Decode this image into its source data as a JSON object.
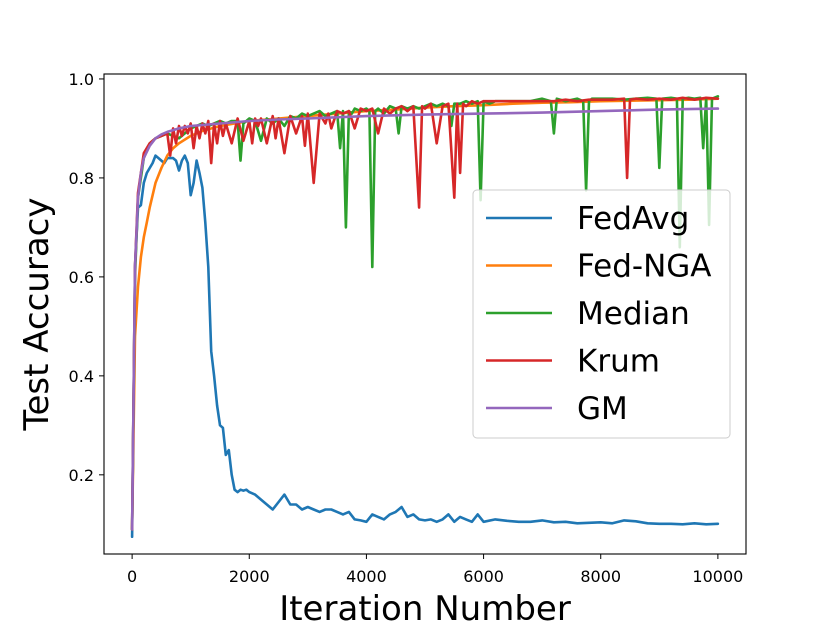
{
  "chart_data": {
    "type": "line",
    "title": "",
    "xlabel": "Iteration Number",
    "ylabel": "Test Accuracy",
    "xlim": [
      -480,
      10480
    ],
    "ylim": [
      0.04,
      1.01
    ],
    "xticks": [
      0,
      2000,
      4000,
      6000,
      8000,
      10000
    ],
    "xtick_labels": [
      "0",
      "2000",
      "4000",
      "6000",
      "8000",
      "10000"
    ],
    "yticks": [
      0.2,
      0.4,
      0.6,
      0.8,
      1.0
    ],
    "ytick_labels": [
      "0.2",
      "0.4",
      "0.6",
      "0.8",
      "1.0"
    ],
    "grid": false,
    "legend_position": "center-right",
    "series": [
      {
        "name": "FedAvg",
        "color": "#1f77b4",
        "x": [
          0,
          50,
          100,
          150,
          200,
          250,
          300,
          350,
          400,
          450,
          500,
          550,
          600,
          650,
          700,
          750,
          800,
          850,
          900,
          950,
          1000,
          1050,
          1100,
          1150,
          1200,
          1250,
          1300,
          1350,
          1400,
          1450,
          1500,
          1550,
          1600,
          1650,
          1700,
          1750,
          1800,
          1850,
          1900,
          1950,
          2000,
          2100,
          2200,
          2300,
          2400,
          2500,
          2600,
          2700,
          2800,
          2900,
          3000,
          3100,
          3200,
          3300,
          3400,
          3500,
          3600,
          3700,
          3800,
          3900,
          4000,
          4100,
          4200,
          4300,
          4400,
          4500,
          4600,
          4700,
          4800,
          4900,
          5000,
          5100,
          5200,
          5300,
          5400,
          5500,
          5600,
          5700,
          5800,
          5900,
          6000,
          6200,
          6400,
          6600,
          6800,
          7000,
          7200,
          7400,
          7600,
          7800,
          8000,
          8200,
          8400,
          8600,
          8800,
          9000,
          9200,
          9400,
          9600,
          9800,
          10000
        ],
        "y": [
          0.075,
          0.62,
          0.74,
          0.745,
          0.79,
          0.81,
          0.82,
          0.83,
          0.845,
          0.84,
          0.835,
          0.83,
          0.84,
          0.84,
          0.84,
          0.835,
          0.815,
          0.835,
          0.845,
          0.83,
          0.765,
          0.79,
          0.835,
          0.81,
          0.78,
          0.71,
          0.62,
          0.45,
          0.4,
          0.34,
          0.3,
          0.295,
          0.24,
          0.25,
          0.2,
          0.17,
          0.165,
          0.17,
          0.168,
          0.17,
          0.165,
          0.16,
          0.15,
          0.14,
          0.13,
          0.145,
          0.16,
          0.14,
          0.14,
          0.13,
          0.135,
          0.13,
          0.125,
          0.13,
          0.13,
          0.125,
          0.12,
          0.125,
          0.11,
          0.108,
          0.105,
          0.12,
          0.115,
          0.11,
          0.12,
          0.125,
          0.135,
          0.115,
          0.12,
          0.11,
          0.108,
          0.11,
          0.105,
          0.11,
          0.12,
          0.105,
          0.115,
          0.11,
          0.105,
          0.12,
          0.105,
          0.11,
          0.107,
          0.105,
          0.105,
          0.108,
          0.104,
          0.105,
          0.102,
          0.103,
          0.104,
          0.102,
          0.108,
          0.106,
          0.102,
          0.101,
          0.101,
          0.1,
          0.102,
          0.1,
          0.101
        ]
      },
      {
        "name": "Fed-NGA",
        "color": "#ff7f0e",
        "x": [
          0,
          50,
          100,
          150,
          200,
          250,
          300,
          400,
          500,
          600,
          700,
          800,
          1000,
          1200,
          1500,
          2000,
          2500,
          3000,
          3500,
          4000,
          4500,
          5000,
          5500,
          6000,
          6500,
          7000,
          7500,
          8000,
          8500,
          9000,
          9500,
          10000
        ],
        "y": [
          0.09,
          0.48,
          0.58,
          0.64,
          0.68,
          0.71,
          0.74,
          0.79,
          0.82,
          0.845,
          0.86,
          0.87,
          0.885,
          0.895,
          0.905,
          0.915,
          0.92,
          0.925,
          0.93,
          0.935,
          0.938,
          0.942,
          0.945,
          0.947,
          0.95,
          0.952,
          0.953,
          0.955,
          0.956,
          0.957,
          0.958,
          0.96
        ]
      },
      {
        "name": "Median",
        "color": "#2ca02c",
        "x": [
          0,
          50,
          100,
          200,
          300,
          400,
          500,
          600,
          700,
          800,
          900,
          1000,
          1100,
          1200,
          1300,
          1400,
          1500,
          1600,
          1700,
          1800,
          1850,
          1900,
          2000,
          2100,
          2200,
          2300,
          2400,
          2500,
          2600,
          2700,
          2800,
          2900,
          3000,
          3100,
          3200,
          3300,
          3400,
          3500,
          3550,
          3600,
          3650,
          3700,
          3750,
          3800,
          3900,
          4000,
          4050,
          4100,
          4150,
          4200,
          4300,
          4400,
          4500,
          4550,
          4600,
          4700,
          4800,
          4900,
          5000,
          5100,
          5200,
          5300,
          5400,
          5450,
          5500,
          5600,
          5700,
          5800,
          5900,
          5950,
          6000,
          6100,
          6200,
          6400,
          6600,
          6800,
          7000,
          7150,
          7200,
          7250,
          7400,
          7600,
          7700,
          7750,
          7800,
          7850,
          8000,
          8200,
          8400,
          8600,
          8800,
          8950,
          9000,
          9050,
          9200,
          9300,
          9350,
          9400,
          9500,
          9600,
          9700,
          9750,
          9800,
          9850,
          9900,
          10000
        ],
        "y": [
          0.09,
          0.6,
          0.76,
          0.84,
          0.87,
          0.88,
          0.885,
          0.89,
          0.885,
          0.88,
          0.89,
          0.9,
          0.905,
          0.91,
          0.905,
          0.91,
          0.915,
          0.91,
          0.915,
          0.915,
          0.835,
          0.91,
          0.92,
          0.915,
          0.875,
          0.92,
          0.91,
          0.92,
          0.905,
          0.925,
          0.92,
          0.93,
          0.925,
          0.93,
          0.935,
          0.925,
          0.93,
          0.935,
          0.86,
          0.935,
          0.7,
          0.935,
          0.93,
          0.94,
          0.935,
          0.94,
          0.935,
          0.62,
          0.935,
          0.94,
          0.93,
          0.945,
          0.94,
          0.89,
          0.945,
          0.94,
          0.945,
          0.94,
          0.945,
          0.95,
          0.945,
          0.95,
          0.945,
          0.905,
          0.95,
          0.95,
          0.955,
          0.95,
          0.955,
          0.755,
          0.955,
          0.95,
          0.955,
          0.955,
          0.955,
          0.955,
          0.96,
          0.955,
          0.89,
          0.96,
          0.955,
          0.96,
          0.955,
          0.775,
          0.955,
          0.96,
          0.96,
          0.96,
          0.958,
          0.96,
          0.962,
          0.96,
          0.82,
          0.96,
          0.962,
          0.96,
          0.66,
          0.96,
          0.962,
          0.96,
          0.962,
          0.86,
          0.962,
          0.705,
          0.96,
          0.965
        ]
      },
      {
        "name": "Krum",
        "color": "#d62728",
        "x": [
          0,
          50,
          100,
          200,
          300,
          400,
          500,
          600,
          650,
          700,
          750,
          800,
          850,
          900,
          950,
          1000,
          1050,
          1100,
          1150,
          1200,
          1250,
          1300,
          1350,
          1400,
          1450,
          1500,
          1550,
          1600,
          1700,
          1800,
          1900,
          2000,
          2050,
          2100,
          2150,
          2200,
          2300,
          2400,
          2450,
          2500,
          2600,
          2700,
          2800,
          2900,
          2950,
          3000,
          3100,
          3200,
          3300,
          3350,
          3400,
          3500,
          3600,
          3700,
          3800,
          3900,
          4000,
          4100,
          4200,
          4300,
          4400,
          4500,
          4600,
          4700,
          4800,
          4900,
          4950,
          5000,
          5100,
          5200,
          5300,
          5400,
          5500,
          5550,
          5600,
          5650,
          5700,
          5800,
          5900,
          6000,
          6200,
          6400,
          6600,
          6800,
          7000,
          7200,
          7400,
          7600,
          7800,
          8000,
          8200,
          8400,
          8450,
          8500,
          8600,
          8800,
          9000,
          9200,
          9400,
          9600,
          9800,
          10000
        ],
        "y": [
          0.09,
          0.62,
          0.77,
          0.85,
          0.87,
          0.88,
          0.885,
          0.89,
          0.845,
          0.9,
          0.87,
          0.905,
          0.885,
          0.905,
          0.89,
          0.91,
          0.86,
          0.905,
          0.88,
          0.91,
          0.89,
          0.915,
          0.83,
          0.91,
          0.87,
          0.915,
          0.885,
          0.91,
          0.87,
          0.92,
          0.875,
          0.915,
          0.87,
          0.92,
          0.905,
          0.92,
          0.87,
          0.925,
          0.88,
          0.92,
          0.85,
          0.925,
          0.89,
          0.925,
          0.865,
          0.93,
          0.79,
          0.93,
          0.91,
          0.93,
          0.9,
          0.935,
          0.93,
          0.935,
          0.9,
          0.94,
          0.935,
          0.94,
          0.89,
          0.94,
          0.93,
          0.94,
          0.945,
          0.935,
          0.945,
          0.74,
          0.945,
          0.94,
          0.95,
          0.87,
          0.945,
          0.95,
          0.76,
          0.95,
          0.81,
          0.95,
          0.945,
          0.955,
          0.95,
          0.955,
          0.955,
          0.955,
          0.955,
          0.955,
          0.955,
          0.955,
          0.958,
          0.955,
          0.958,
          0.958,
          0.958,
          0.96,
          0.8,
          0.958,
          0.96,
          0.958,
          0.96,
          0.958,
          0.962,
          0.958,
          0.962,
          0.96
        ]
      },
      {
        "name": "GM",
        "color": "#9467bd",
        "x": [
          0,
          50,
          100,
          150,
          200,
          300,
          400,
          500,
          600,
          800,
          1000,
          1500,
          2000,
          2500,
          3000,
          4000,
          5000,
          6000,
          7000,
          8000,
          9000,
          10000
        ],
        "y": [
          0.09,
          0.62,
          0.76,
          0.81,
          0.84,
          0.865,
          0.88,
          0.888,
          0.893,
          0.9,
          0.905,
          0.91,
          0.915,
          0.918,
          0.92,
          0.925,
          0.928,
          0.93,
          0.932,
          0.935,
          0.938,
          0.94
        ]
      }
    ]
  }
}
